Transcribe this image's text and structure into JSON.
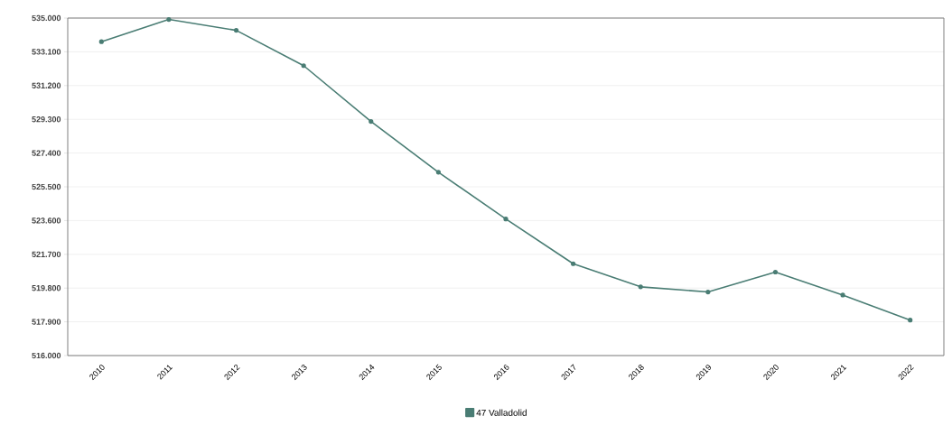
{
  "chart_data": {
    "type": "line",
    "categories": [
      "2010",
      "2011",
      "2012",
      "2013",
      "2014",
      "2015",
      "2016",
      "2017",
      "2018",
      "2019",
      "2020",
      "2021",
      "2022"
    ],
    "series": [
      {
        "name": "47 Valladolid",
        "color": "#4a7d74",
        "values": [
          533670,
          534920,
          534310,
          532320,
          529180,
          526320,
          523690,
          521170,
          519870,
          519580,
          520700,
          519410,
          518000
        ]
      }
    ],
    "ylim": [
      516000,
      535000
    ],
    "yticks": [
      {
        "value": 516000,
        "label": "516.000"
      },
      {
        "value": 517900,
        "label": "517.900"
      },
      {
        "value": 519800,
        "label": "519.800"
      },
      {
        "value": 521700,
        "label": "521.700"
      },
      {
        "value": 523600,
        "label": "523.600"
      },
      {
        "value": 525500,
        "label": "525.500"
      },
      {
        "value": 527400,
        "label": "527.400"
      },
      {
        "value": 529300,
        "label": "529.300"
      },
      {
        "value": 531200,
        "label": "531.200"
      },
      {
        "value": 533100,
        "label": "533.100"
      },
      {
        "value": 535000,
        "label": "535.000"
      }
    ],
    "grid": "y",
    "legend": "bottom",
    "marker": "circle",
    "line_style": "solid"
  }
}
